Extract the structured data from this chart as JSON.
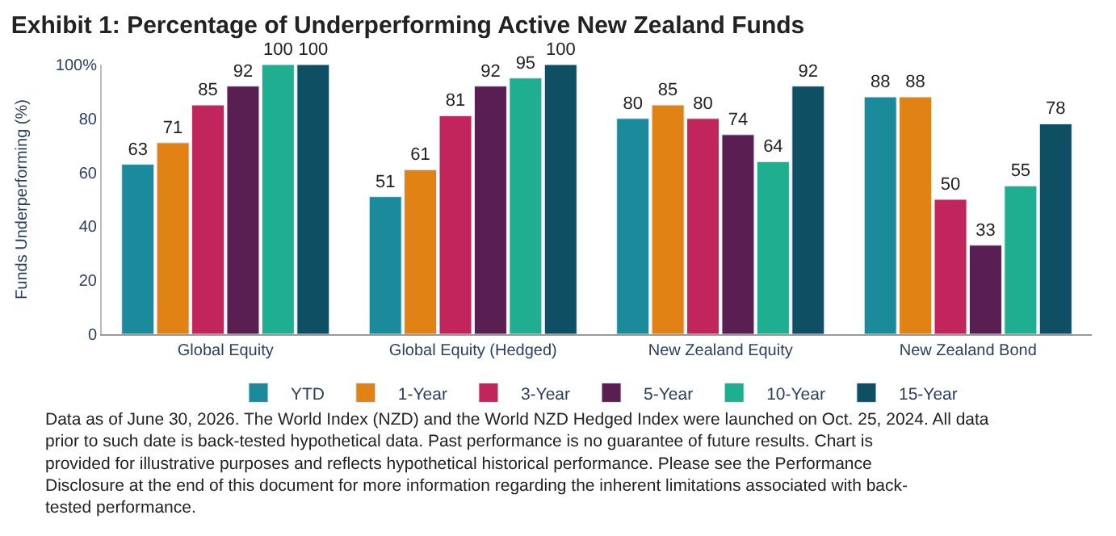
{
  "chart_data": {
    "type": "bar",
    "title": "Exhibit 1: Percentage of Underperforming Active New Zealand Funds",
    "ylabel": "Funds Underperforming (%)",
    "categories": [
      "Global Equity",
      "Global Equity (Hedged)",
      "New Zealand Equity",
      "New Zealand Bond"
    ],
    "series": [
      {
        "name": "YTD",
        "color": "#1b8a9a",
        "values": [
          63,
          51,
          80,
          88
        ]
      },
      {
        "name": "1-Year",
        "color": "#e08214",
        "values": [
          71,
          61,
          85,
          88
        ]
      },
      {
        "name": "3-Year",
        "color": "#c2255c",
        "values": [
          85,
          81,
          80,
          50
        ]
      },
      {
        "name": "5-Year",
        "color": "#5a1f52",
        "values": [
          92,
          92,
          74,
          33
        ]
      },
      {
        "name": "10-Year",
        "color": "#1fae8f",
        "values": [
          100,
          95,
          64,
          55
        ]
      },
      {
        "name": "15-Year",
        "color": "#0e4f63",
        "values": [
          100,
          100,
          92,
          78
        ]
      }
    ],
    "ylim": [
      0,
      100
    ],
    "yticks": [
      0,
      20,
      40,
      60,
      80,
      {
        "value": 100,
        "label": "100%"
      }
    ],
    "legend": "bottom",
    "data_labels": true,
    "annotations": [
      "Data as of June 30, 2026. The World Index (NZD) and the World NZD Hedged Index were launched on Oct. 25, 2024. All data prior to such date is back-tested hypothetical data. Past performance is no guarantee of future results. Chart is provided for illustrative purposes and reflects hypothetical historical performance. Please see the Performance Disclosure at the end of this document for more information regarding the inherent limitations associated with back-tested performance."
    ]
  }
}
